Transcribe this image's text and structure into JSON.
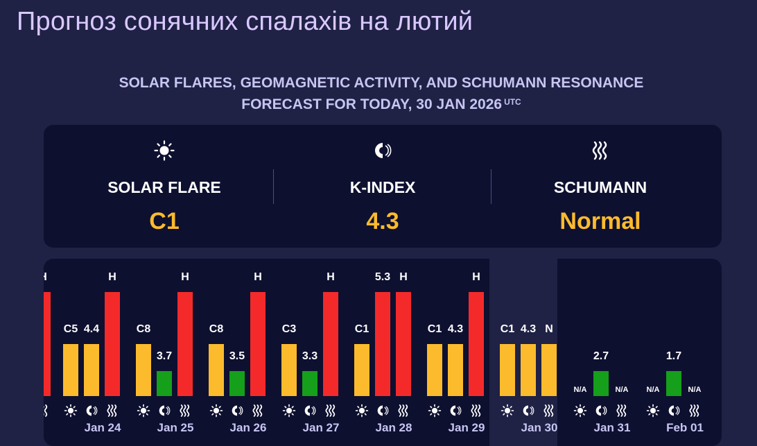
{
  "page_title": "Прогноз сонячних спалахів на лютий",
  "subtitle_line1": "SOLAR FLARES, GEOMAGNETIC ACTIVITY, AND SCHUMANN RESONANCE",
  "subtitle_line2": "FORECAST FOR TODAY, 30 JAN 2026",
  "subtitle_sup": "UTC",
  "summary": [
    {
      "label": "SOLAR FLARE",
      "value": "C1",
      "icon": "sun-icon"
    },
    {
      "label": "K-INDEX",
      "value": "4.3",
      "icon": "magnet-icon"
    },
    {
      "label": "SCHUMANN",
      "value": "Normal",
      "icon": "wave-icon"
    }
  ],
  "colors": {
    "yellow": "#fbbb2c",
    "green": "#169f1a",
    "red": "#f42a2a",
    "accent_text": "#c7c5f2"
  },
  "chart_data": {
    "type": "bar",
    "categories": [
      "Jan 24",
      "Jan 25",
      "Jan 26",
      "Jan 27",
      "Jan 28",
      "Jan 29",
      "Jan 30",
      "Jan 31",
      "Feb 01"
    ],
    "today": "Jan 30",
    "series": [
      {
        "name": "",
        "icon": "sun-icon",
        "labels": [
          "C5",
          "C8",
          "C8",
          "C3",
          "C1",
          "C1",
          "C1",
          "N/A",
          "N/A"
        ],
        "levels": [
          0.5,
          0.5,
          0.5,
          0.5,
          0.5,
          0.5,
          0.5,
          0,
          0
        ],
        "colors": [
          "yellow",
          "yellow",
          "yellow",
          "yellow",
          "yellow",
          "yellow",
          "yellow",
          "none",
          "none"
        ]
      },
      {
        "name": "",
        "icon": "magnet-icon",
        "labels": [
          "4.4",
          "3.7",
          "3.5",
          "3.3",
          "5.3",
          "4.3",
          "4.3",
          "2.7",
          "1.7"
        ],
        "levels": [
          0.5,
          0.24,
          0.24,
          0.24,
          1.0,
          0.5,
          0.5,
          0.24,
          0.24
        ],
        "colors": [
          "yellow",
          "green",
          "green",
          "green",
          "red",
          "yellow",
          "yellow",
          "green",
          "green"
        ]
      },
      {
        "name": "",
        "icon": "wave-icon",
        "labels": [
          "H",
          "H",
          "H",
          "H",
          "H",
          "H",
          "N",
          "N/A",
          "N/A"
        ],
        "levels": [
          1.0,
          1.0,
          1.0,
          1.0,
          1.0,
          1.0,
          0.5,
          0,
          0
        ],
        "colors": [
          "red",
          "red",
          "red",
          "red",
          "red",
          "red",
          "yellow",
          "none",
          "none"
        ]
      }
    ],
    "partial_left_label": "H"
  }
}
